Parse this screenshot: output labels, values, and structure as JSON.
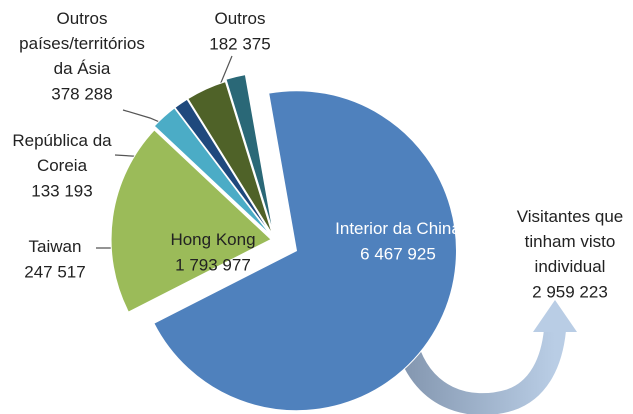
{
  "chart_data": {
    "type": "pie",
    "categories": [
      "Interior da China",
      "Hong Kong",
      "Taiwan",
      "República da\nCoreia",
      "Outros\npaíses/territórios\nda Ásia",
      "Outros"
    ],
    "values": [
      6467925,
      1793977,
      247517,
      133193,
      378288,
      182375
    ],
    "value_labels": [
      "6 467 925",
      "1 793 977",
      "247 517",
      "133 193",
      "378 288",
      "182 375"
    ],
    "colors": [
      "#4f81bd",
      "#9bbb59",
      "#4bacc6",
      "#1f497d",
      "#4f6228",
      "#2a6877"
    ],
    "annotation": {
      "text": "Visitantes que\ntinham visto\nindividual",
      "value": 2959223,
      "value_label": "2 959 223"
    }
  }
}
